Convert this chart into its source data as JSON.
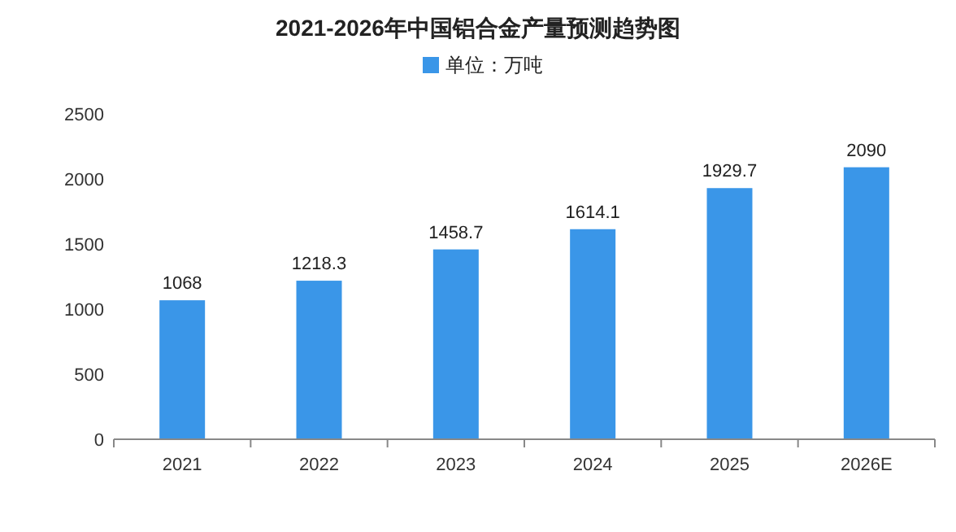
{
  "chart_data": {
    "type": "bar",
    "title": "2021-2026年中国铝合金产量预测趋势图",
    "categories": [
      "2021",
      "2022",
      "2023",
      "2024",
      "2025",
      "2026E"
    ],
    "series": [
      {
        "name": "单位：万吨",
        "color": "#3a96e8",
        "values": [
          1068,
          1218.3,
          1458.7,
          1614.1,
          1929.7,
          2090
        ]
      }
    ],
    "ylim": [
      0,
      2500
    ],
    "yticks": [
      0,
      500,
      1000,
      1500,
      2000,
      2500
    ],
    "data_labels": true,
    "legend": "top",
    "grid": false
  }
}
